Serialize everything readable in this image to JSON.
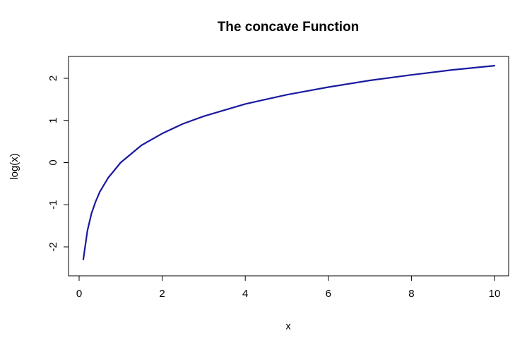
{
  "chart_data": {
    "type": "line",
    "title": "The concave Function",
    "xlabel": "x",
    "ylabel": "log(x)",
    "xlim": [
      0,
      10
    ],
    "ylim": [
      -2.5,
      2.5
    ],
    "x_ticks": [
      0,
      2,
      4,
      6,
      8,
      10
    ],
    "y_ticks": [
      -2,
      -1,
      0,
      1,
      2
    ],
    "grid": false,
    "legend": "none",
    "series": [
      {
        "color": "#1a1a9e",
        "x": [
          0.1,
          0.2,
          0.3,
          0.4,
          0.5,
          0.7,
          1,
          1.5,
          2,
          2.5,
          3,
          4,
          5,
          6,
          7,
          8,
          9,
          10
        ],
        "values": [
          -2.3,
          -1.61,
          -1.2,
          -0.92,
          -0.69,
          -0.36,
          0,
          0.41,
          0.69,
          0.92,
          1.1,
          1.39,
          1.61,
          1.79,
          1.95,
          2.08,
          2.2,
          2.3
        ]
      }
    ]
  }
}
